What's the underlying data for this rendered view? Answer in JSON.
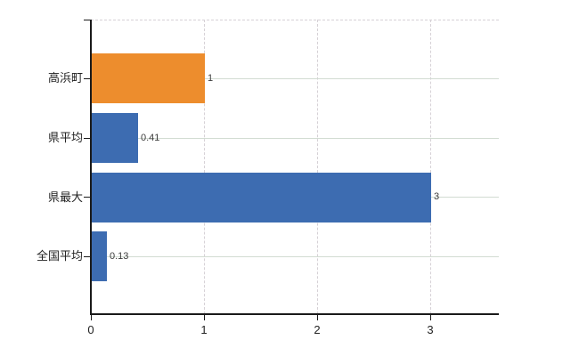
{
  "chart_data": {
    "type": "bar",
    "orientation": "horizontal",
    "title": "",
    "xlabel": "",
    "ylabel": "",
    "categories": [
      "高浜町",
      "県平均",
      "県最大",
      "全国平均"
    ],
    "values": [
      1,
      0.41,
      3,
      0.13
    ],
    "value_labels": [
      "1",
      "0.41",
      "3",
      "0.13"
    ],
    "bar_colors": [
      "#ED8D2D",
      "#3D6CB1",
      "#3D6CB1",
      "#3D6CB1"
    ],
    "highlighted_category": "高浜町",
    "xticks": [
      0,
      1,
      2,
      3
    ],
    "xtick_labels": [
      "0",
      "1",
      "2",
      "3"
    ],
    "xlim": [
      0,
      3.61
    ],
    "grid": true,
    "legend": false
  },
  "colors": {
    "highlight_bar": "#ED8D2D",
    "default_bar": "#3D6CB1",
    "axis": "#1a1a1a",
    "gridline_dashed": "#d6d1d6",
    "gridline_solid": "#d2dcd2",
    "category_text": "#222222",
    "value_text": "#3c3c3c",
    "background": "#ffffff"
  }
}
